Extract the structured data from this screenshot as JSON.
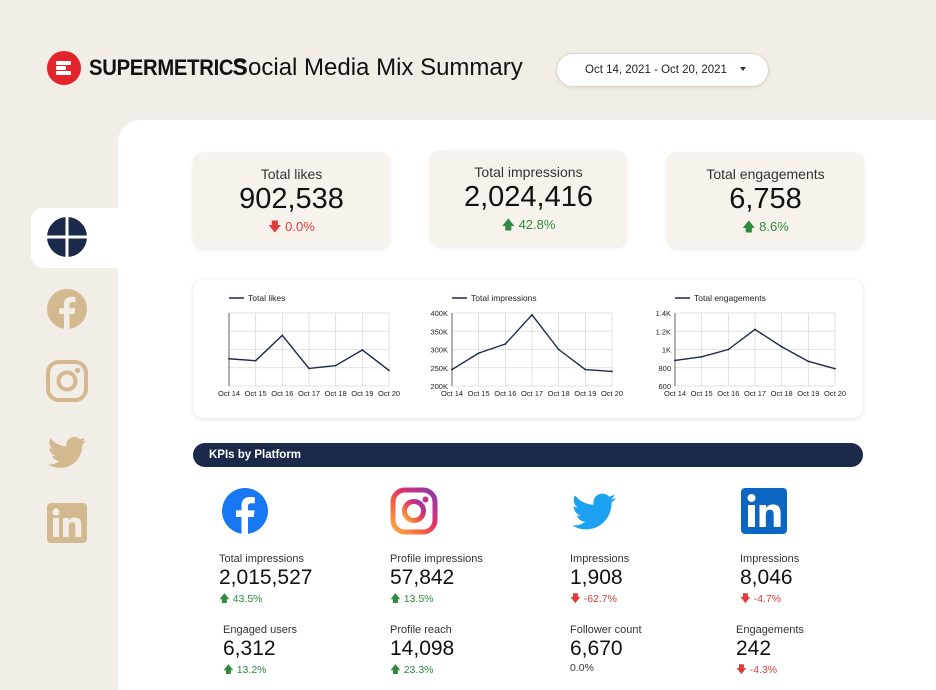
{
  "header": {
    "brand": "SUPERMETRICS",
    "title": "Social Media Mix Summary",
    "date_range": "Oct 14, 2021 - Oct 20, 2021"
  },
  "sidebar": {
    "items": [
      {
        "icon": "overview-icon",
        "active": true
      },
      {
        "icon": "facebook-icon",
        "active": false
      },
      {
        "icon": "instagram-icon",
        "active": false
      },
      {
        "icon": "twitter-icon",
        "active": false
      },
      {
        "icon": "linkedin-icon",
        "active": false
      }
    ]
  },
  "kpis": [
    {
      "label": "Total likes",
      "value": "902,538",
      "delta": "0.0%",
      "direction": "down"
    },
    {
      "label": "Total impressions",
      "value": "2,024,416",
      "delta": "42.8%",
      "direction": "up"
    },
    {
      "label": "Total engagements",
      "value": "6,758",
      "delta": "8.6%",
      "direction": "up"
    }
  ],
  "chart_data": [
    {
      "type": "line",
      "x": [
        "Oct 14",
        "Oct 15",
        "Oct 16",
        "Oct 17",
        "Oct 18",
        "Oct 19",
        "Oct 20"
      ],
      "series": [
        {
          "name": "Total likes",
          "values": [
            128000,
            126000,
            152000,
            118000,
            121000,
            137000,
            116000
          ]
        }
      ],
      "yticks": [],
      "ylim": [
        100000,
        175000
      ],
      "legend": "top-left",
      "grid": true
    },
    {
      "type": "line",
      "x": [
        "Oct 14",
        "Oct 15",
        "Oct 16",
        "Oct 17",
        "Oct 18",
        "Oct 19",
        "Oct 20"
      ],
      "series": [
        {
          "name": "Total impressions",
          "values": [
            245000,
            290000,
            315000,
            395000,
            300000,
            245000,
            240000
          ]
        }
      ],
      "yticks": [
        "400K",
        "350K",
        "300K",
        "250K",
        "200K"
      ],
      "ylim": [
        200000,
        400000
      ],
      "legend": "top-left",
      "grid": true
    },
    {
      "type": "line",
      "x": [
        "Oct 14",
        "Oct 15",
        "Oct 16",
        "Oct 17",
        "Oct 18",
        "Oct 19",
        "Oct 20"
      ],
      "series": [
        {
          "name": "Total engagements",
          "values": [
            880,
            920,
            1000,
            1220,
            1030,
            870,
            790
          ]
        }
      ],
      "yticks": [
        "1.4K",
        "1.2K",
        "1K",
        "800",
        "600"
      ],
      "ylim": [
        600,
        1400
      ],
      "legend": "top-left",
      "grid": true
    }
  ],
  "kpi_section": {
    "title": "KPIs by Platform"
  },
  "platforms": [
    {
      "icon": "facebook-icon",
      "metrics": [
        {
          "label": "Total impressions",
          "value": "2,015,527",
          "delta": "43.5%",
          "direction": "up"
        },
        {
          "label": "Engaged users",
          "value": "6,312",
          "delta": "13.2%",
          "direction": "up"
        }
      ]
    },
    {
      "icon": "instagram-icon",
      "metrics": [
        {
          "label": "Profile impressions",
          "value": "57,842",
          "delta": "13.5%",
          "direction": "up"
        },
        {
          "label": "Profile reach",
          "value": "14,098",
          "delta": "23.3%",
          "direction": "up"
        }
      ]
    },
    {
      "icon": "twitter-icon",
      "metrics": [
        {
          "label": "Impressions",
          "value": "1,908",
          "delta": "-62.7%",
          "direction": "down"
        },
        {
          "label": "Follower count",
          "value": "6,670",
          "delta": "0.0%",
          "direction": "none"
        }
      ]
    },
    {
      "icon": "linkedin-icon",
      "metrics": [
        {
          "label": "Impressions",
          "value": "8,046",
          "delta": "-4.7%",
          "direction": "down"
        },
        {
          "label": "Engagements",
          "value": "242",
          "delta": "-4.3%",
          "direction": "down"
        }
      ]
    }
  ],
  "colors": {
    "background": "#f2ede6",
    "navy": "#1b2a4a",
    "brand_red": "#e3242b",
    "icon_tan": "#d2b98f",
    "up": "#2e8b3d",
    "down": "#e03a3a"
  }
}
